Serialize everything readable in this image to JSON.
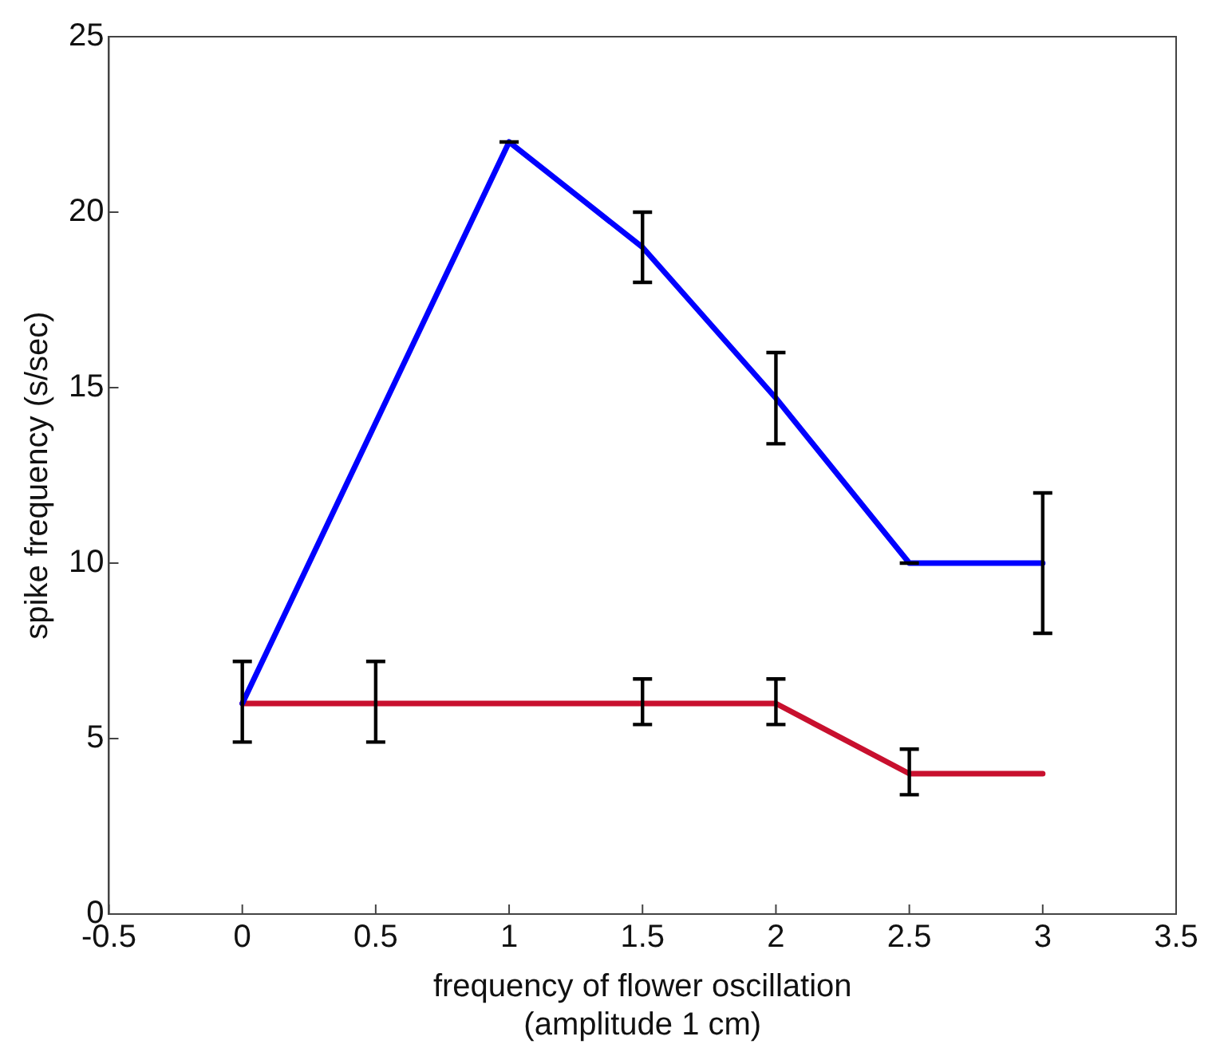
{
  "chart_data": {
    "type": "line",
    "xlabel": "frequency of flower oscillation\n(amplitude 1 cm)",
    "ylabel": "spike frequency (s/sec)",
    "xlim": [
      -0.5,
      3.5
    ],
    "xticks": [
      -0.5,
      0,
      0.5,
      1,
      1.5,
      2,
      2.5,
      3,
      3.5
    ],
    "ylim": [
      0,
      25
    ],
    "yticks": [
      0,
      5,
      10,
      15,
      20,
      25
    ],
    "grid": false,
    "legend": false,
    "marker": "none",
    "line_style": "solid",
    "series": [
      {
        "color": "#0000ff",
        "x": [
          0,
          1,
          1.5,
          2,
          2.5,
          3
        ],
        "values": [
          6,
          22,
          19,
          14.7,
          10,
          10
        ],
        "errors": [
          null,
          0,
          1,
          [
            13.4,
            16
          ],
          0,
          2
        ]
      },
      {
        "color": "#c8102e",
        "x": [
          0,
          0.5,
          1,
          1.5,
          2,
          2.5,
          3
        ],
        "values": [
          6,
          6,
          6,
          6,
          6,
          4,
          4
        ],
        "errors": [
          [
            4.9,
            7.2
          ],
          [
            4.9,
            7.2
          ],
          null,
          [
            5.4,
            6.7
          ],
          [
            5.4,
            6.7
          ],
          [
            3.4,
            4.7
          ],
          null
        ]
      }
    ]
  }
}
